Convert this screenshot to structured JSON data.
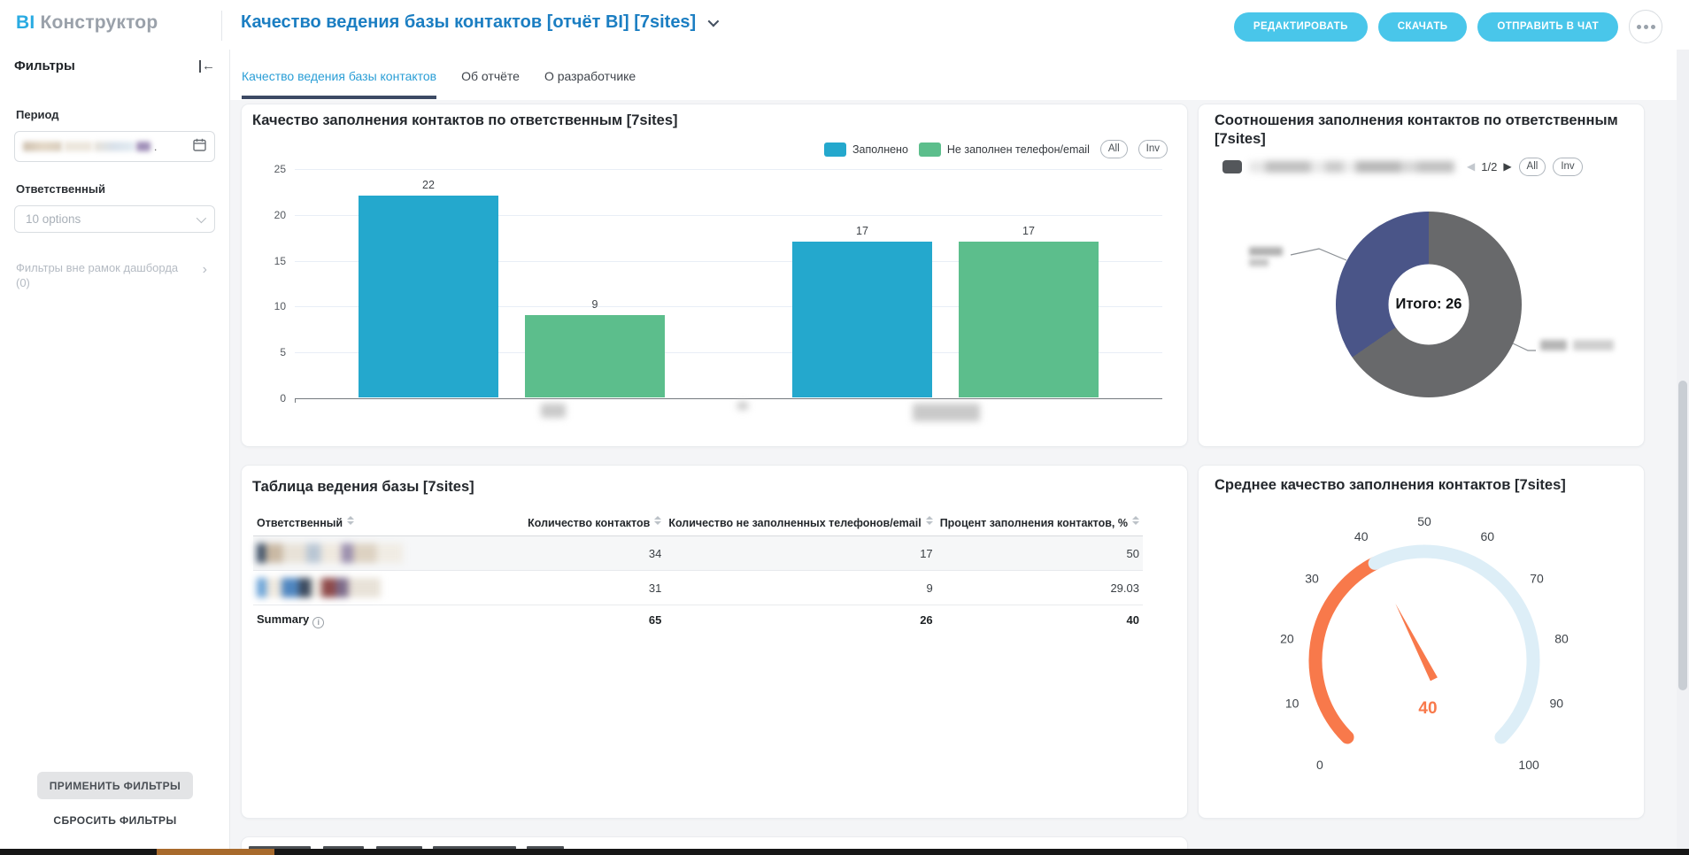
{
  "app": {
    "logo_accent": "BI",
    "logo_text": "Конструктор"
  },
  "header": {
    "title": "Качество ведения базы контактов [отчёт BI] [7sites]",
    "actions": [
      "РЕДАКТИРОВАТЬ",
      "СКАЧАТЬ",
      "ОТПРАВИТЬ В ЧАТ"
    ]
  },
  "tabs": [
    {
      "label": "Качество ведения базы контактов",
      "active": true
    },
    {
      "label": "Об отчёте",
      "active": false
    },
    {
      "label": "О разработчике",
      "active": false
    }
  ],
  "sidebar": {
    "title": "Фильтры",
    "period": {
      "label": "Период",
      "value_redacted": true
    },
    "responsible": {
      "label": "Ответственный",
      "value": "10 options"
    },
    "outer_filters": {
      "label": "Фильтры вне рамок дашборда",
      "count": "(0)"
    },
    "apply_button": "ПРИМЕНИТЬ ФИЛЬТРЫ",
    "reset_button": "СБРОСИТЬ ФИЛЬТРЫ"
  },
  "chart_data": [
    {
      "type": "bar",
      "title": "Качество заполнения контактов по ответственным [7sites]",
      "categories": [
        "",
        ""
      ],
      "x_labels_redacted": true,
      "series": [
        {
          "name": "Заполнено",
          "color": "#24a8cd",
          "values": [
            22,
            17
          ]
        },
        {
          "name": "Не заполнен телефон/email",
          "color": "#5cbe8c",
          "values": [
            9,
            17
          ]
        }
      ],
      "ylim": [
        0,
        25
      ],
      "ytick_step": 5,
      "legend_position": "top-right",
      "controls": [
        "All",
        "Inv"
      ]
    },
    {
      "type": "pie",
      "title": "Соотношения заполнения контактов по ответственным [7sites]",
      "center_label": "Итого: 26",
      "total": 26,
      "slices": [
        {
          "label": "",
          "label_redacted": true,
          "value": 17,
          "color": "#68696b"
        },
        {
          "label": "",
          "label_redacted": true,
          "value": 9,
          "color": "#4a5588"
        }
      ],
      "pagination": {
        "current": "1/2"
      },
      "controls": [
        "All",
        "Inv"
      ]
    },
    {
      "type": "gauge",
      "title": "Среднее качество заполнения контактов [7sites]",
      "value": 40,
      "min": 0,
      "max": 100,
      "tick_step": 10,
      "value_color": "#f8794b",
      "track_color": "#ddeef7"
    },
    {
      "type": "table",
      "title": "Таблица ведения базы [7sites]",
      "columns": [
        "Ответственный",
        "Количество контактов",
        "Количество не заполненных телефонов/email",
        "Процент заполнения контактов, %"
      ],
      "rows_names_redacted": true,
      "rows": [
        [
          "",
          34,
          17,
          "50"
        ],
        [
          "",
          31,
          9,
          "29.03"
        ]
      ],
      "summary": [
        "Summary",
        65,
        26,
        "40"
      ]
    }
  ]
}
